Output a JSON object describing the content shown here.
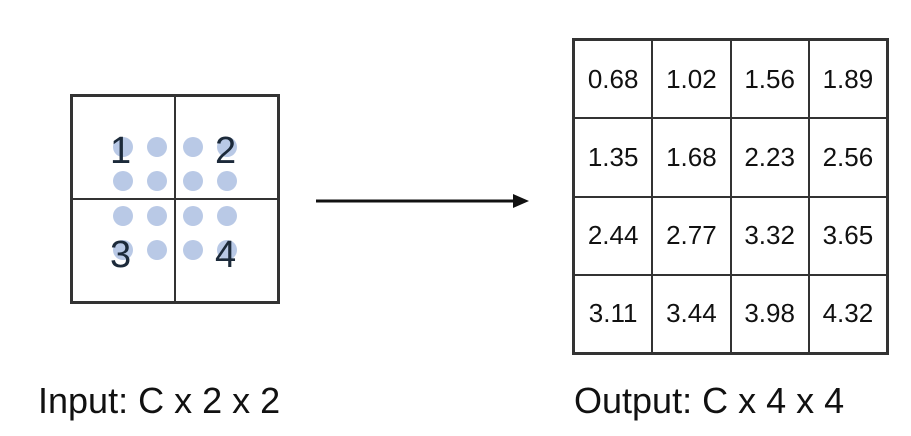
{
  "input": {
    "caption": "Input: C x 2 x 2",
    "values": [
      "1",
      "2",
      "3",
      "4"
    ],
    "dot_color": "#b9c9e6"
  },
  "output": {
    "caption": "Output: C x 4 x 4",
    "rows": [
      [
        "0.68",
        "1.02",
        "1.56",
        "1.89"
      ],
      [
        "1.35",
        "1.68",
        "2.23",
        "2.56"
      ],
      [
        "2.44",
        "2.77",
        "3.32",
        "3.65"
      ],
      [
        "3.11",
        "3.44",
        "3.98",
        "4.32"
      ]
    ]
  }
}
